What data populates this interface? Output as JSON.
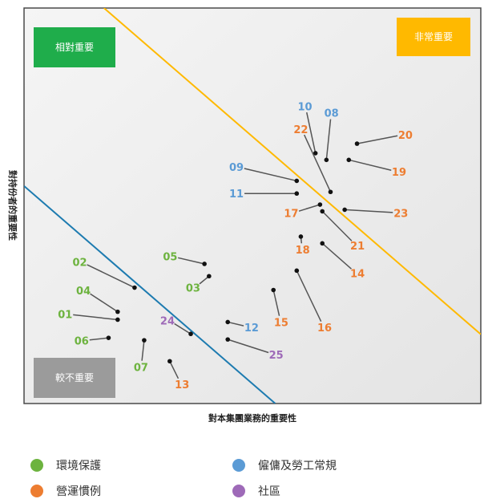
{
  "chart_data": {
    "type": "scatter",
    "xlabel": "對本集團業務的重要性",
    "ylabel": "對持份者的重要性",
    "xlim": [
      0,
      10
    ],
    "ylim": [
      0,
      10
    ],
    "grid": false,
    "quadrants": [
      {
        "key": "relative",
        "label": "相對重要",
        "color": "#1fad4b"
      },
      {
        "key": "very",
        "label": "非常重要",
        "color": "#ffb900"
      },
      {
        "key": "less",
        "label": "較不重要",
        "color": "#9b9b9b"
      }
    ],
    "divider_lines": [
      {
        "name": "upper",
        "color": "#ffb900",
        "points": [
          [
            1.75,
            10
          ],
          [
            10,
            1.75
          ]
        ]
      },
      {
        "name": "lower",
        "color": "#1d7bb0",
        "points": [
          [
            0,
            5.5
          ],
          [
            5.5,
            0
          ]
        ]
      }
    ],
    "categories": [
      {
        "key": "env",
        "label": "環境保護",
        "color": "#6db33f"
      },
      {
        "key": "emp",
        "label": "僱傭及勞工常規",
        "color": "#5b9bd5"
      },
      {
        "key": "ops",
        "label": "營運慣例",
        "color": "#ed7d31"
      },
      {
        "key": "soc",
        "label": "社區",
        "color": "#9e6ab8"
      }
    ],
    "points": [
      {
        "id": "01",
        "category": "env",
        "x": 2.05,
        "y": 2.12,
        "lx": 0.9,
        "ly": 2.26
      },
      {
        "id": "02",
        "category": "env",
        "x": 2.42,
        "y": 2.93,
        "lx": 1.22,
        "ly": 3.58
      },
      {
        "id": "03",
        "category": "env",
        "x": 4.05,
        "y": 3.22,
        "lx": 3.7,
        "ly": 2.93
      },
      {
        "id": "04",
        "category": "env",
        "x": 2.05,
        "y": 2.32,
        "lx": 1.3,
        "ly": 2.86
      },
      {
        "id": "05",
        "category": "env",
        "x": 3.95,
        "y": 3.53,
        "lx": 3.2,
        "ly": 3.72
      },
      {
        "id": "06",
        "category": "env",
        "x": 1.85,
        "y": 1.66,
        "lx": 1.26,
        "ly": 1.59
      },
      {
        "id": "07",
        "category": "env",
        "x": 2.63,
        "y": 1.6,
        "lx": 2.56,
        "ly": 0.92
      },
      {
        "id": "08",
        "category": "emp",
        "x": 6.62,
        "y": 6.16,
        "lx": 6.73,
        "ly": 7.35
      },
      {
        "id": "09",
        "category": "emp",
        "x": 5.97,
        "y": 5.63,
        "lx": 4.65,
        "ly": 5.98
      },
      {
        "id": "10",
        "category": "emp",
        "x": 6.38,
        "y": 6.33,
        "lx": 6.15,
        "ly": 7.52
      },
      {
        "id": "11",
        "category": "emp",
        "x": 5.97,
        "y": 5.31,
        "lx": 4.65,
        "ly": 5.31
      },
      {
        "id": "12",
        "category": "emp",
        "x": 4.46,
        "y": 2.06,
        "lx": 4.98,
        "ly": 1.93
      },
      {
        "id": "13",
        "category": "ops",
        "x": 3.19,
        "y": 1.07,
        "lx": 3.46,
        "ly": 0.49
      },
      {
        "id": "14",
        "category": "ops",
        "x": 6.53,
        "y": 4.05,
        "lx": 7.3,
        "ly": 3.3
      },
      {
        "id": "15",
        "category": "ops",
        "x": 5.46,
        "y": 2.87,
        "lx": 5.63,
        "ly": 2.06
      },
      {
        "id": "16",
        "category": "ops",
        "x": 5.97,
        "y": 3.36,
        "lx": 6.58,
        "ly": 1.93
      },
      {
        "id": "17",
        "category": "ops",
        "x": 6.48,
        "y": 5.03,
        "lx": 5.85,
        "ly": 4.82
      },
      {
        "id": "18",
        "category": "ops",
        "x": 6.06,
        "y": 4.22,
        "lx": 6.1,
        "ly": 3.89
      },
      {
        "id": "19",
        "category": "ops",
        "x": 7.11,
        "y": 6.16,
        "lx": 8.21,
        "ly": 5.86
      },
      {
        "id": "20",
        "category": "ops",
        "x": 7.29,
        "y": 6.57,
        "lx": 8.35,
        "ly": 6.8
      },
      {
        "id": "21",
        "category": "ops",
        "x": 6.53,
        "y": 4.86,
        "lx": 7.3,
        "ly": 4.0
      },
      {
        "id": "22",
        "category": "ops",
        "x": 6.71,
        "y": 5.35,
        "lx": 6.06,
        "ly": 6.94
      },
      {
        "id": "23",
        "category": "ops",
        "x": 7.02,
        "y": 4.9,
        "lx": 8.25,
        "ly": 4.82
      },
      {
        "id": "24",
        "category": "soc",
        "x": 3.65,
        "y": 1.76,
        "lx": 3.14,
        "ly": 2.1
      },
      {
        "id": "25",
        "category": "soc",
        "x": 4.46,
        "y": 1.62,
        "lx": 5.52,
        "ly": 1.24
      }
    ]
  }
}
